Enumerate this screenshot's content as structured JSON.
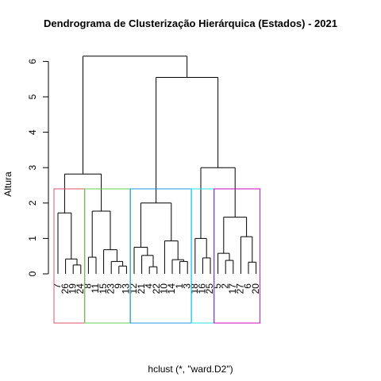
{
  "chart_data": {
    "type": "dendrogram",
    "title": "Dendrograma de Clusterização Hierárquica (Estados) - 2021",
    "ylabel": "Altura",
    "sublabel": "hclust (*, \"ward.D2\")",
    "ylim": [
      0,
      6.2
    ],
    "yticks": [
      "0",
      "1",
      "2",
      "3",
      "4",
      "5",
      "6"
    ],
    "leaves": [
      "7",
      "26",
      "19",
      "24",
      "8",
      "11",
      "15",
      "23",
      "9",
      "13",
      "12",
      "21",
      "4",
      "22",
      "10",
      "14",
      "1",
      "3",
      "18",
      "16",
      "25",
      "5",
      "2",
      "17",
      "27",
      "6",
      "20"
    ],
    "leaf_height": [
      1.1,
      -0.1,
      -0.1,
      -0.1,
      0.45,
      -0.1,
      -0.1,
      -0.1,
      -0.1,
      -0.1,
      0.12,
      -0.1,
      -0.1,
      -0.1,
      0.35,
      -0.1,
      -0.1,
      -0.1,
      0.12,
      -0.1,
      -0.1,
      0.35,
      -0.1,
      -0.1,
      -0.1,
      -0.1,
      -0.1
    ],
    "merges": [
      [
        19,
        24,
        0.25
      ],
      [
        9,
        13,
        0.2
      ],
      [
        1,
        3,
        0.3
      ],
      [
        14,
        26,
        0.4
      ],
      [
        26,
        28,
        0.42
      ],
      [
        23,
        27,
        0.35
      ],
      [
        17,
        30,
        0.38
      ],
      [
        16,
        25,
        0.45
      ],
      [
        2,
        18,
        0.5
      ],
      [
        23,
        29,
        0.35
      ],
      [
        4,
        22,
        0.52
      ],
      [
        12,
        32,
        0.75
      ],
      [
        8,
        11,
        0.45
      ],
      [
        15,
        34,
        0.7
      ],
      [
        10,
        33,
        0.92
      ],
      [
        5,
        36,
        0.58
      ],
      [
        20,
        35,
        1.0
      ],
      [
        6,
        20,
        1.05
      ],
      [
        7,
        37,
        1.75
      ],
      [
        21,
        39,
        1.6
      ],
      [
        31,
        41,
        2.0
      ],
      [
        38,
        43,
        2.8
      ],
      [
        42,
        40,
        3.0
      ],
      [
        45,
        46,
        5.55
      ],
      [
        44,
        47,
        6.15
      ]
    ],
    "clusters": [
      {
        "color": "#DF536B",
        "leaves": [
          "7",
          "26",
          "19",
          "24"
        ]
      },
      {
        "color": "#61D04F",
        "leaves": [
          "8",
          "11",
          "15",
          "23",
          "9",
          "13"
        ]
      },
      {
        "color": "#2297E6",
        "leaves": [
          "12",
          "21",
          "4",
          "22",
          "10",
          "14",
          "1",
          "3"
        ]
      },
      {
        "color": "#28E2E5",
        "leaves": [
          "18",
          "16",
          "25"
        ]
      },
      {
        "color": "#CD0BBC",
        "leaves": [
          "5",
          "2",
          "17",
          "27",
          "6",
          "20"
        ]
      }
    ]
  }
}
